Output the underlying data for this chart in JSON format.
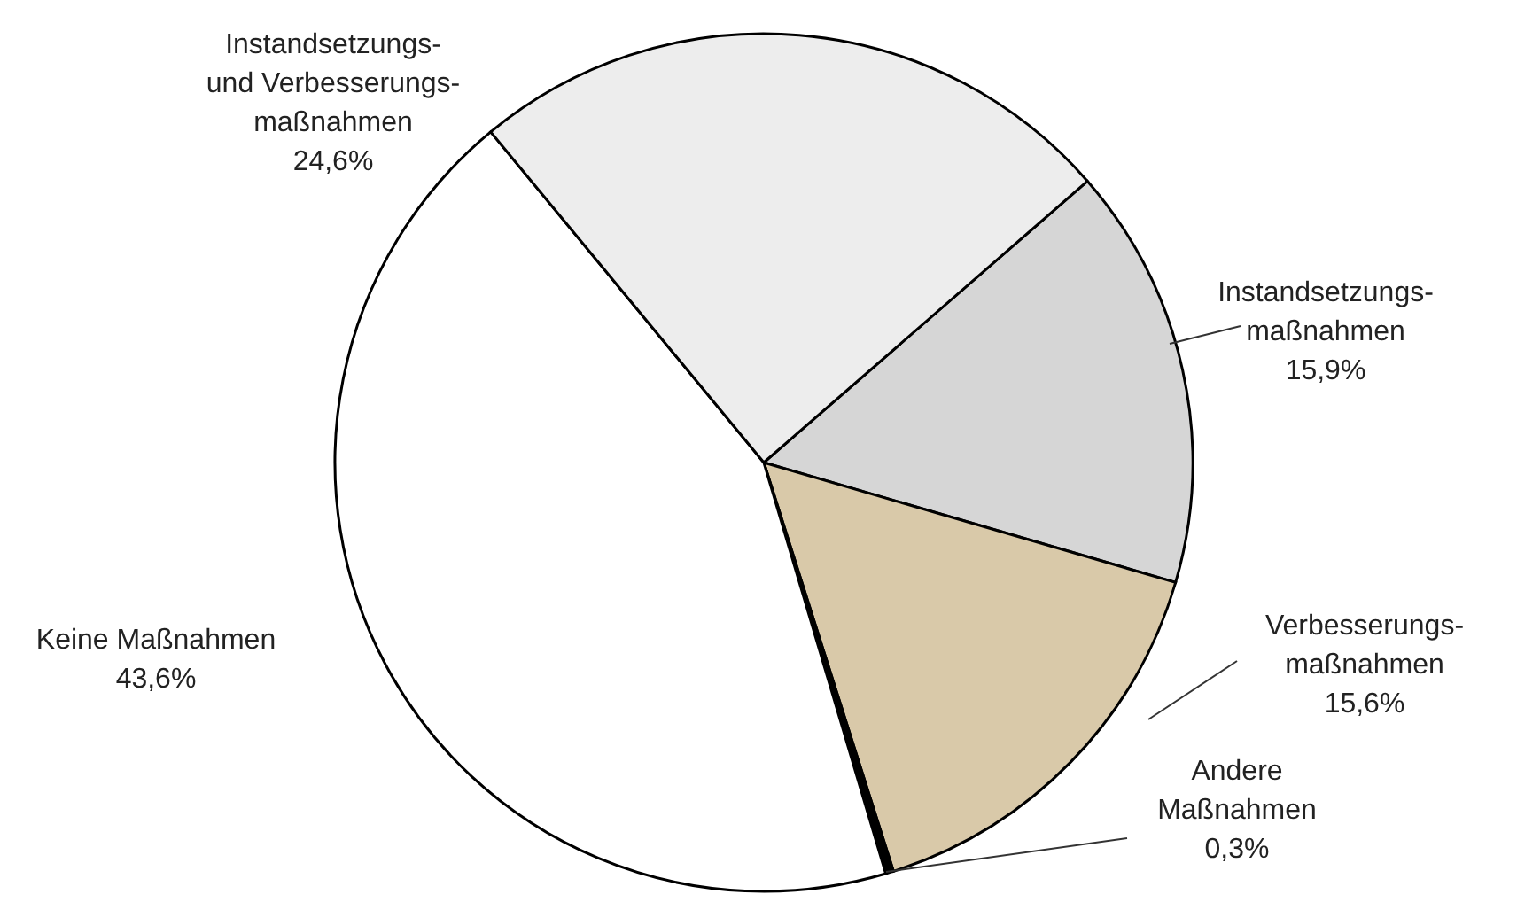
{
  "chart_data": {
    "type": "pie",
    "categories": [
      "Instandsetzungs-\nmaßnahmen",
      "Verbesserungs-\nmaßnahmen",
      "Andere\nMaßnahmen",
      "Keine Maßnahmen",
      "Instandsetzungs-\nund Verbesserungs-\nmaßnahmen"
    ],
    "values": [
      15.9,
      15.6,
      0.3,
      43.6,
      24.6
    ],
    "value_labels": [
      "15,9%",
      "15,6%",
      "0,3%",
      "43,6%",
      "24,6%"
    ],
    "colors": [
      "#d6d6d6",
      "#d9c9a9",
      "#000000",
      "#ffffff",
      "#ededed"
    ],
    "legend": false
  }
}
